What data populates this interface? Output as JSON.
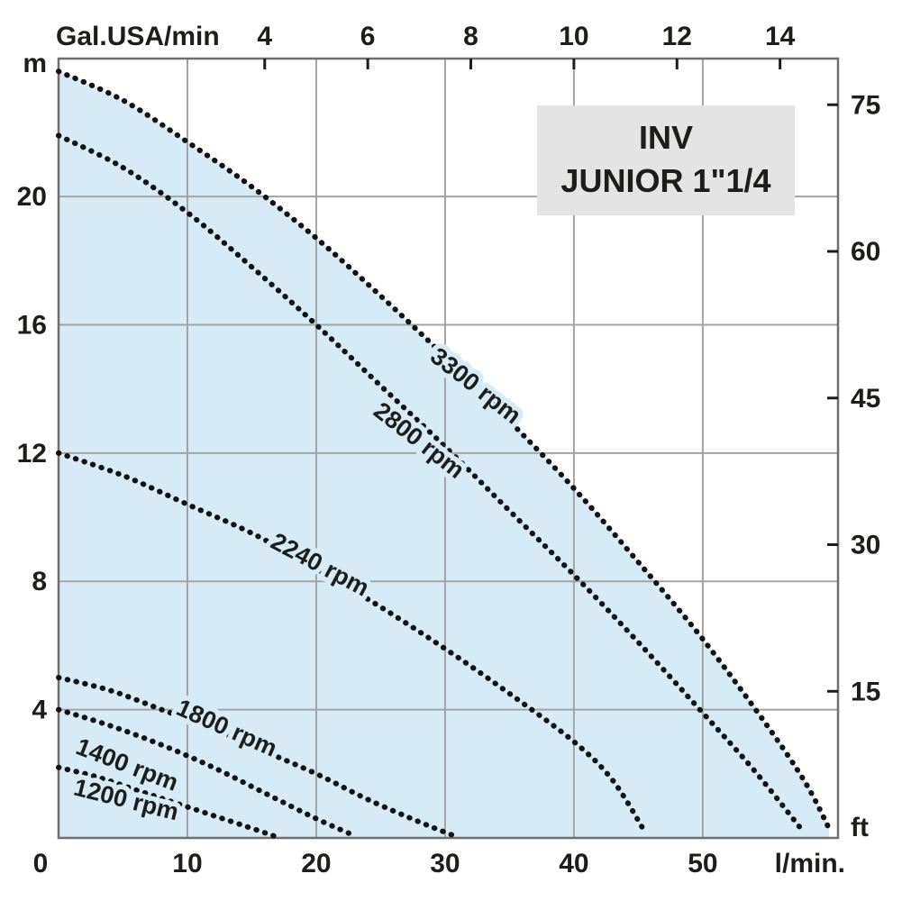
{
  "title_box": {
    "line1": "INV",
    "line2": "JUNIOR 1\"1/4"
  },
  "chart_data": {
    "type": "line",
    "title": "INV JUNIOR 1\"1/4",
    "axes": {
      "bottom": {
        "label": "l/min.",
        "zero_label": "0",
        "ticks": [
          10,
          20,
          30,
          40,
          50
        ],
        "max": 60.5
      },
      "top": {
        "label": "Gal.USA/min",
        "ticks": [
          4,
          6,
          8,
          10,
          12,
          14
        ],
        "lmin_per_gal": 4.0
      },
      "left": {
        "label": "m",
        "ticks": [
          4,
          8,
          12,
          16,
          20
        ],
        "max": 24.3
      },
      "right": {
        "label": "ft",
        "ticks": [
          15,
          30,
          45,
          60,
          75
        ],
        "m_per_ft": 0.3048
      }
    },
    "colors": {
      "fill": "#d7ebf6",
      "curve": "#121212",
      "grid": "#a3a3a3",
      "border": "#6f6f6f",
      "tick": "#1d1d1b",
      "text": "#1d1d1b",
      "title_bg": "#e4e4e4"
    },
    "series": [
      {
        "name": "3300 rpm",
        "label": {
          "q": 32.0,
          "m": 13.9,
          "angle": 38
        },
        "points": [
          [
            0,
            23.9
          ],
          [
            5,
            23.0
          ],
          [
            10,
            21.7
          ],
          [
            15,
            20.3
          ],
          [
            20,
            18.7
          ],
          [
            25,
            16.9
          ],
          [
            30,
            15.0
          ],
          [
            35,
            13.0
          ],
          [
            40,
            10.9
          ],
          [
            45,
            8.6
          ],
          [
            50,
            6.2
          ],
          [
            55,
            3.5
          ],
          [
            58,
            1.7
          ],
          [
            59.8,
            0.3
          ]
        ]
      },
      {
        "name": "2800 rpm",
        "label": {
          "q": 27.6,
          "m": 12.2,
          "angle": 38
        },
        "points": [
          [
            0,
            21.9
          ],
          [
            5,
            20.9
          ],
          [
            10,
            19.5
          ],
          [
            15,
            17.8
          ],
          [
            20,
            16.0
          ],
          [
            25,
            14.1
          ],
          [
            30,
            12.2
          ],
          [
            35,
            10.2
          ],
          [
            40,
            8.2
          ],
          [
            45,
            6.1
          ],
          [
            50,
            3.9
          ],
          [
            54,
            2.1
          ],
          [
            57.8,
            0.2
          ]
        ]
      },
      {
        "name": "2240 rpm",
        "label": {
          "q": 20.0,
          "m": 8.3,
          "angle": 28
        },
        "points": [
          [
            0,
            12.0
          ],
          [
            5,
            11.3
          ],
          [
            10,
            10.4
          ],
          [
            15,
            9.5
          ],
          [
            20,
            8.4
          ],
          [
            25,
            7.2
          ],
          [
            30,
            5.9
          ],
          [
            35,
            4.5
          ],
          [
            40,
            3.0
          ],
          [
            43,
            1.8
          ],
          [
            45.5,
            0.2
          ]
        ]
      },
      {
        "name": "1800 rpm",
        "label": {
          "q": 12.8,
          "m": 3.2,
          "angle": 24
        },
        "points": [
          [
            0,
            5.0
          ],
          [
            4,
            4.6
          ],
          [
            8,
            4.0
          ],
          [
            12,
            3.4
          ],
          [
            16,
            2.7
          ],
          [
            20,
            2.0
          ],
          [
            24,
            1.2
          ],
          [
            28,
            0.5
          ],
          [
            30.5,
            0.1
          ]
        ]
      },
      {
        "name": "1400 rpm",
        "label": {
          "q": 5.1,
          "m": 2.05,
          "angle": 21
        },
        "points": [
          [
            0,
            4.0
          ],
          [
            4,
            3.5
          ],
          [
            8,
            2.9
          ],
          [
            12,
            2.2
          ],
          [
            16,
            1.4
          ],
          [
            20,
            0.6
          ],
          [
            22.8,
            0.1
          ]
        ]
      },
      {
        "name": "1200 rpm",
        "label": {
          "q": 5.1,
          "m": 0.95,
          "angle": 14
        },
        "points": [
          [
            0,
            2.2
          ],
          [
            3,
            1.9
          ],
          [
            6,
            1.5
          ],
          [
            9,
            1.1
          ],
          [
            12,
            0.7
          ],
          [
            15,
            0.3
          ],
          [
            16.8,
            0.05
          ]
        ]
      }
    ]
  }
}
